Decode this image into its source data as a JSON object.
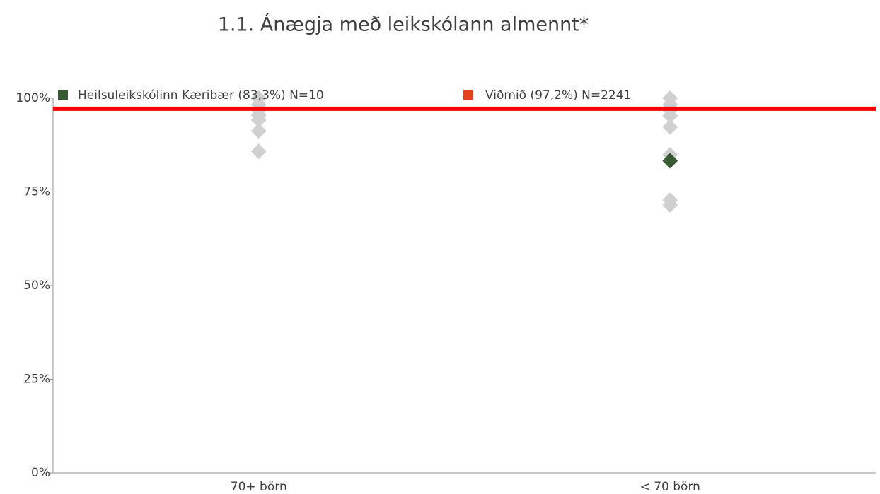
{
  "chart_data": {
    "type": "dotplot",
    "title": "1.1. Ánægja með leikskólann almennt*",
    "categories": [
      "70+ börn",
      "< 70 börn"
    ],
    "ylim": [
      0,
      100
    ],
    "yticks": [
      {
        "value": 0,
        "label": "0%"
      },
      {
        "value": 25,
        "label": "25%"
      },
      {
        "value": 50,
        "label": "50%"
      },
      {
        "value": 75,
        "label": "75%"
      },
      {
        "value": 100,
        "label": "100%"
      }
    ],
    "series": [
      {
        "name": "Heilsuleikskólinn Kæribær (83,3%) N=10",
        "color": "#375a32",
        "values": [
          null,
          83.3
        ]
      }
    ],
    "other_points": {
      "color": "#d0d0d0",
      "values": [
        [
          100,
          98.3,
          96.8,
          95.5,
          94.2,
          91.3,
          85.8
        ],
        [
          100,
          98.3,
          96.8,
          95.3,
          92.3,
          84.9,
          72.8,
          71.5
        ]
      ]
    },
    "reference": {
      "name": "Viðmið (97,2%) N=2241",
      "color": "#ff0000",
      "legend_color": "#e5401c",
      "value": 97.2
    }
  }
}
